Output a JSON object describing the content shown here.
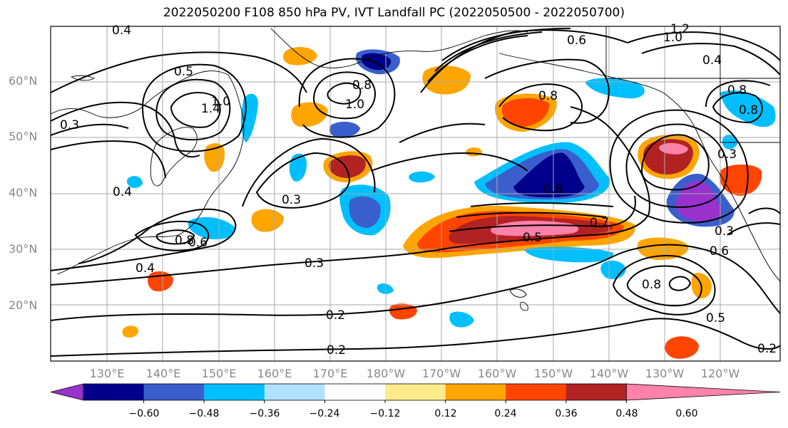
{
  "title": "2022050200 F108 850 hPa PV, IVT Landfall PC (2022050500 - 2022050700)",
  "lat_labels": [
    "60°N",
    "50°N",
    "40°N",
    "30°N",
    "20°N"
  ],
  "lon_labels": [
    "130°E",
    "140°E",
    "150°E",
    "160°E",
    "170°E",
    "180°W",
    "170°W",
    "160°W",
    "150°W",
    "140°W",
    "130°W",
    "120°W"
  ],
  "colorbar": {
    "ticks": [
      "−0.60",
      "−0.48",
      "−0.36",
      "−0.24",
      "−0.12",
      "0.12",
      "0.24",
      "0.36",
      "0.48",
      "0.60"
    ],
    "colors": [
      "#9932cc",
      "#00008b",
      "#3a5fcd",
      "#00bfff",
      "#b0e2ff",
      "#ffffff",
      "#ffec8b",
      "#ffa500",
      "#ff4500",
      "#b22222",
      "#ff82ab"
    ]
  },
  "contour_labels": [
    "0.4",
    "0.5",
    "1.4",
    "1.0",
    "0.3",
    "0.4",
    "0.8",
    "0.6",
    "0.4",
    "0.8",
    "1.0",
    "1.2",
    "0.6",
    "1.0",
    "0.4",
    "0.8",
    "0.8",
    "0.3",
    "0.8",
    "0.7",
    "0.5",
    "0.3",
    "0.2",
    "0.2",
    "0.8",
    "0.6",
    "0.5",
    "0.3",
    "0.2",
    "0.8",
    "0.3"
  ],
  "colors": {
    "contour": "#000000",
    "grid": "#aaaaaa",
    "coast": "#000000",
    "axis_label": "#888888"
  }
}
